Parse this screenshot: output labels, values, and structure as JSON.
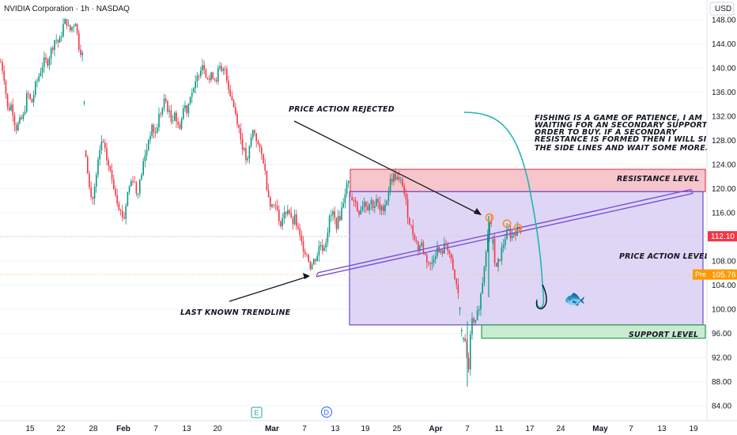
{
  "header": {
    "title": "NVIDIA Corporation · 1h · NASDAQ"
  },
  "currency": "USD",
  "price_badges": {
    "last": {
      "value": "112.10",
      "color": "#f23645"
    },
    "pre": {
      "label": "Pre",
      "value": "105.76",
      "color": "#ff9800"
    }
  },
  "event_markers": [
    {
      "letter": "E",
      "label": "earnings-marker"
    },
    {
      "letter": "D",
      "label": "dividend-marker"
    }
  ],
  "annotations": {
    "price_action_rejected": "PRICE ACTION REJECTED",
    "last_known_trendline": "LAST KNOWN TRENDLINE",
    "resistance_level": "RESISTANCE LEVEL",
    "price_action_level": "PRICE ACTION LEVEL",
    "support_level": "SUPPORT LEVEL",
    "fishing_note": [
      "FISHING IS A GAME OF PATIENCE, I AM",
      "WAITING FOR AN SECONDARY SUPPORT IN",
      "ORDER TO BUY. IF A SECONDARY",
      "RESISTANCE IS FORMED THEN I WILL SIT ON",
      "THE SIDE LINES AND WAIT SOME MORE."
    ],
    "fish_emoji": "🐟"
  },
  "colors": {
    "up": "#089981",
    "down": "#f23645",
    "resistance_fill": "#f7c5cc",
    "price_zone_fill": "#d8cff2",
    "support_fill": "#c9ebd0",
    "trendline": "#7b4fd6",
    "hook": "#1fb5b5",
    "circles": "#ff8c1a"
  },
  "chart_data": {
    "type": "candlestick",
    "title": "NVIDIA Corporation · 1h · NASDAQ",
    "ylim": [
      82,
      150
    ],
    "y_ticks": [
      84,
      88,
      92,
      96,
      100,
      104,
      108,
      112,
      116,
      120,
      124,
      128,
      132,
      136,
      140,
      144,
      148
    ],
    "x_tick_labels": [
      "15",
      "22",
      "28",
      "Feb",
      "7",
      "13",
      "20",
      "Mar",
      "7",
      "13",
      "19",
      "25",
      "Apr",
      "7",
      "11",
      "17",
      "24",
      "May",
      "7",
      "13",
      "19"
    ],
    "price_path": [
      [
        0,
        141
      ],
      [
        4,
        139
      ],
      [
        9,
        133
      ],
      [
        14,
        134
      ],
      [
        19,
        130
      ],
      [
        24,
        131
      ],
      [
        29,
        132
      ],
      [
        34,
        136
      ],
      [
        39,
        134
      ],
      [
        44,
        137
      ],
      [
        49,
        139
      ],
      [
        54,
        141
      ],
      [
        59,
        141
      ],
      [
        64,
        143
      ],
      [
        69,
        145
      ],
      [
        74,
        144
      ],
      [
        79,
        147
      ],
      [
        83,
        148
      ],
      [
        87,
        146
      ],
      [
        91,
        147
      ],
      [
        95,
        148
      ],
      [
        98,
        144
      ],
      [
        101,
        143
      ],
      [
        104,
        142
      ],
      [
        107,
        127
      ],
      [
        110,
        123
      ],
      [
        113,
        119
      ],
      [
        116,
        118
      ],
      [
        120,
        121
      ],
      [
        124,
        125
      ],
      [
        128,
        128
      ],
      [
        132,
        126
      ],
      [
        136,
        124
      ],
      [
        140,
        122
      ],
      [
        144,
        120
      ],
      [
        148,
        118
      ],
      [
        152,
        116
      ],
      [
        156,
        115
      ],
      [
        160,
        119
      ],
      [
        164,
        121
      ],
      [
        168,
        122
      ],
      [
        172,
        119
      ],
      [
        176,
        121
      ],
      [
        180,
        124
      ],
      [
        184,
        126
      ],
      [
        188,
        129
      ],
      [
        192,
        130
      ],
      [
        196,
        129
      ],
      [
        200,
        132
      ],
      [
        204,
        133
      ],
      [
        208,
        135
      ],
      [
        212,
        133
      ],
      [
        216,
        131
      ],
      [
        220,
        133
      ],
      [
        224,
        130
      ],
      [
        228,
        131
      ],
      [
        232,
        134
      ],
      [
        236,
        133
      ],
      [
        240,
        136
      ],
      [
        244,
        136
      ],
      [
        248,
        138
      ],
      [
        252,
        140
      ],
      [
        256,
        141
      ],
      [
        260,
        139
      ],
      [
        264,
        138
      ],
      [
        268,
        139
      ],
      [
        272,
        138
      ],
      [
        276,
        140
      ],
      [
        280,
        139
      ],
      [
        284,
        140
      ],
      [
        288,
        137
      ],
      [
        292,
        135
      ],
      [
        296,
        133
      ],
      [
        300,
        131
      ],
      [
        304,
        128
      ],
      [
        308,
        126
      ],
      [
        312,
        124
      ],
      [
        316,
        128
      ],
      [
        320,
        130
      ],
      [
        324,
        128
      ],
      [
        328,
        126
      ],
      [
        332,
        125
      ],
      [
        336,
        121
      ],
      [
        340,
        118
      ],
      [
        344,
        117
      ],
      [
        348,
        118
      ],
      [
        352,
        114
      ],
      [
        356,
        115
      ],
      [
        360,
        116
      ],
      [
        364,
        117
      ],
      [
        368,
        114
      ],
      [
        372,
        115
      ],
      [
        376,
        113
      ],
      [
        380,
        111
      ],
      [
        384,
        110
      ],
      [
        388,
        109
      ],
      [
        392,
        107
      ],
      [
        396,
        108
      ],
      [
        400,
        109
      ],
      [
        404,
        111
      ],
      [
        408,
        110
      ],
      [
        412,
        112
      ],
      [
        416,
        115
      ],
      [
        420,
        116
      ],
      [
        424,
        114
      ],
      [
        428,
        115
      ],
      [
        432,
        117
      ],
      [
        436,
        120
      ],
      [
        440,
        121
      ],
      [
        444,
        119
      ],
      [
        448,
        118
      ],
      [
        452,
        116
      ],
      [
        456,
        117
      ],
      [
        460,
        118
      ],
      [
        464,
        117
      ],
      [
        468,
        118
      ],
      [
        472,
        117
      ],
      [
        476,
        118
      ],
      [
        480,
        116
      ],
      [
        484,
        117
      ],
      [
        488,
        118
      ],
      [
        492,
        121
      ],
      [
        496,
        122
      ],
      [
        500,
        122
      ],
      [
        504,
        121
      ],
      [
        508,
        121
      ],
      [
        512,
        118
      ],
      [
        516,
        115
      ],
      [
        520,
        113
      ],
      [
        524,
        112
      ],
      [
        528,
        110
      ],
      [
        532,
        111
      ],
      [
        536,
        109
      ],
      [
        540,
        108
      ],
      [
        544,
        107
      ],
      [
        548,
        109
      ],
      [
        552,
        110
      ],
      [
        556,
        109
      ],
      [
        560,
        110
      ],
      [
        564,
        111
      ],
      [
        568,
        109
      ],
      [
        572,
        106
      ],
      [
        576,
        104
      ],
      [
        580,
        102
      ],
      [
        583,
        96
      ],
      [
        586,
        95
      ],
      [
        589,
        93
      ],
      [
        591,
        88
      ],
      [
        593,
        94
      ],
      [
        596,
        98
      ],
      [
        600,
        97
      ],
      [
        604,
        100
      ],
      [
        608,
        103
      ],
      [
        612,
        108
      ],
      [
        616,
        113
      ],
      [
        620,
        115
      ],
      [
        622,
        112
      ],
      [
        626,
        106
      ],
      [
        630,
        108
      ],
      [
        634,
        110
      ],
      [
        638,
        112
      ],
      [
        642,
        113
      ],
      [
        646,
        112
      ],
      [
        650,
        113
      ],
      [
        654,
        113
      ],
      [
        658,
        114
      ]
    ],
    "zones": {
      "resistance": [
        119.5,
        123.2
      ],
      "price_action": [
        97.4,
        119.5
      ],
      "support": [
        95.2,
        97.4
      ]
    },
    "trendline": {
      "from": 105.4,
      "to": 119.2
    },
    "pre_market_level": 105.76,
    "last_price_level": 112.1
  }
}
